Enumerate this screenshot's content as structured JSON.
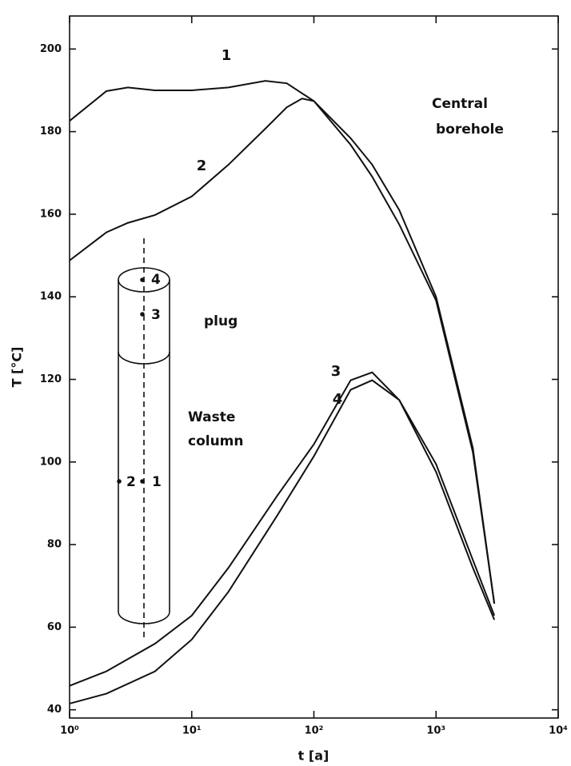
{
  "chart_data": {
    "type": "line",
    "x_label": "t [a]",
    "y_label": "T [°C]",
    "xscale": "log",
    "xlim": [
      1,
      10000
    ],
    "ylim": [
      38,
      208
    ],
    "xticks": [
      {
        "value": 1,
        "label": "10⁰"
      },
      {
        "value": 10,
        "label": "10¹"
      },
      {
        "value": 100,
        "label": "10²"
      },
      {
        "value": 1000,
        "label": "10³"
      },
      {
        "value": 10000,
        "label": "10⁴"
      }
    ],
    "yticks": [
      40,
      60,
      80,
      100,
      120,
      140,
      160,
      180,
      200
    ],
    "color": "#111111",
    "series": [
      {
        "name": "1",
        "x": [
          1,
          2,
          3,
          5,
          10,
          20,
          40,
          60,
          100,
          200,
          300,
          500,
          1000,
          2000,
          3000
        ],
        "values": [
          182.6,
          189.8,
          190.7,
          190,
          190,
          190.7,
          192.3,
          191.7,
          187.4,
          178.4,
          172,
          161,
          140,
          103.4,
          65.7
        ]
      },
      {
        "name": "2",
        "x": [
          1,
          2,
          3,
          5,
          10,
          20,
          40,
          60,
          80,
          100,
          200,
          300,
          500,
          1000,
          2000,
          3000
        ],
        "values": [
          148.8,
          155.6,
          157.9,
          159.8,
          164.3,
          172,
          180.7,
          185.9,
          188,
          187.4,
          176.8,
          169.1,
          157.5,
          139.1,
          102.4,
          65.7
        ]
      },
      {
        "name": "3",
        "x": [
          1,
          2,
          5,
          10,
          20,
          50,
          100,
          200,
          300,
          500,
          1000,
          2000,
          3000
        ],
        "values": [
          45.8,
          49.3,
          56,
          62.8,
          74.4,
          91.8,
          104.3,
          119.8,
          121.7,
          115,
          99.5,
          76.3,
          62.8
        ]
      },
      {
        "name": "4",
        "x": [
          1,
          2,
          5,
          10,
          20,
          50,
          100,
          200,
          300,
          500,
          1000,
          2000,
          3000
        ],
        "values": [
          41.5,
          43.9,
          49.3,
          57,
          68.6,
          87,
          101.4,
          117.5,
          119.8,
          115,
          97.6,
          74.4,
          61.8
        ]
      }
    ],
    "annotations": [
      "Central",
      "borehole",
      "plug",
      "Waste",
      "column",
      "4",
      "3",
      "2",
      "1"
    ]
  }
}
